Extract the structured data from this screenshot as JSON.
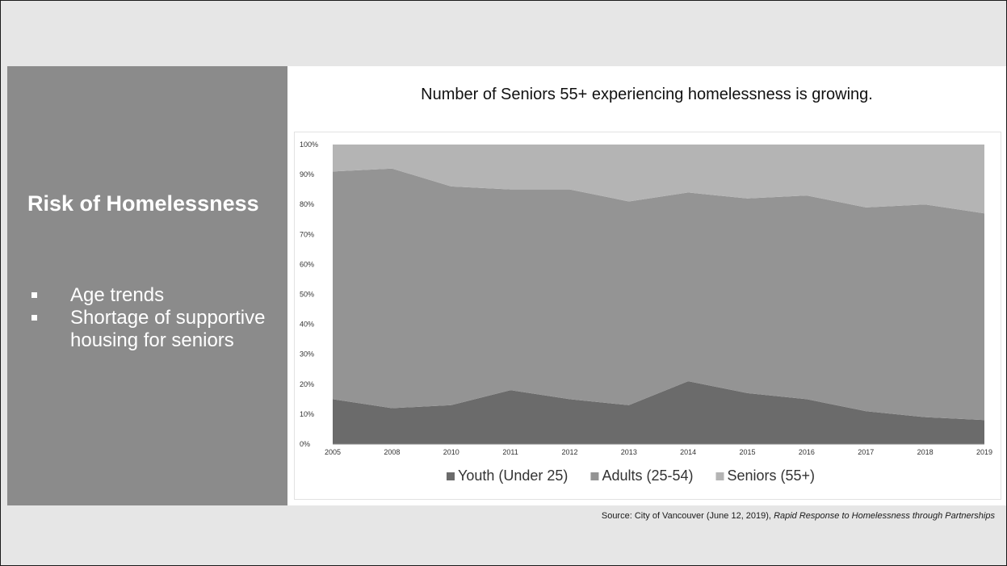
{
  "slide": {
    "title": "Risk of Homelessness",
    "bullets": [
      "Age trends",
      "Shortage of supportive housing for seniors"
    ],
    "chart_heading": "Number of Seniors 55+ experiencing homelessness is growing.",
    "source_prefix": "Source: City of Vancouver (June 12, 2019), ",
    "source_title": "Rapid Response to Homelessness through Partnerships"
  },
  "chart_data": {
    "type": "area",
    "stacked": "percent",
    "title": "",
    "xlabel": "",
    "ylabel": "",
    "categories": [
      "2005",
      "2008",
      "2010",
      "2011",
      "2012",
      "2013",
      "2014",
      "2015",
      "2016",
      "2017",
      "2018",
      "2019"
    ],
    "ylim": [
      0,
      100
    ],
    "y_ticks": [
      "0%",
      "10%",
      "20%",
      "30%",
      "40%",
      "50%",
      "60%",
      "70%",
      "80%",
      "90%",
      "100%"
    ],
    "series": [
      {
        "name": "Youth (Under 25)",
        "color": "#6b6b6b",
        "values": [
          15,
          12,
          13,
          18,
          15,
          13,
          21,
          17,
          15,
          11,
          9,
          8
        ]
      },
      {
        "name": "Adults (25-54)",
        "color": "#949494",
        "values": [
          76,
          80,
          73,
          67,
          70,
          68,
          63,
          65,
          68,
          68,
          71,
          69
        ]
      },
      {
        "name": "Seniors (55+)",
        "color": "#b4b4b4",
        "values": [
          9,
          8,
          14,
          15,
          15,
          19,
          16,
          18,
          17,
          21,
          20,
          23
        ]
      }
    ],
    "legend": "bottom",
    "grid": false
  }
}
